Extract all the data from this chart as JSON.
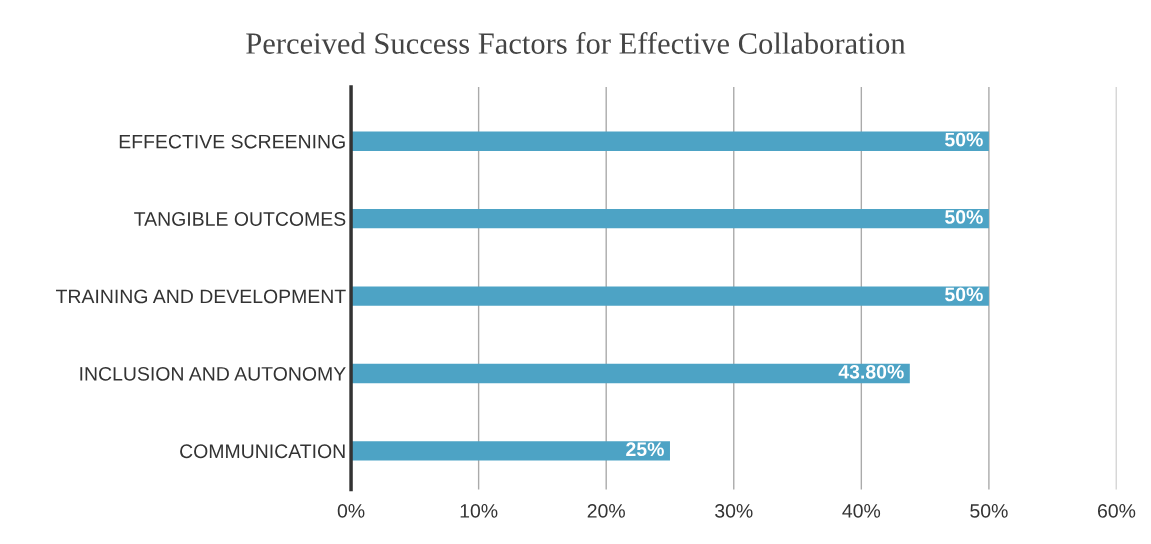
{
  "chart_data": {
    "type": "bar",
    "orientation": "horizontal",
    "title": "Perceived Success Factors for Effective Collaboration",
    "categories": [
      "EFFECTIVE SCREENING",
      "TANGIBLE OUTCOMES",
      "TRAINING AND DEVELOPMENT",
      "INCLUSION AND AUTONOMY",
      "COMMUNICATION"
    ],
    "values": [
      50,
      50,
      50,
      43.8,
      25
    ],
    "value_labels": [
      "50%",
      "50%",
      "50%",
      "43.80%",
      "25%"
    ],
    "color": "#4da3c5",
    "xlim": [
      0,
      60
    ],
    "xticks": [
      {
        "value": 0,
        "label": "0%"
      },
      {
        "value": 10,
        "label": "10%"
      },
      {
        "value": 20,
        "label": "20%"
      },
      {
        "value": 30,
        "label": "30%"
      },
      {
        "value": 40,
        "label": "40%"
      },
      {
        "value": 50,
        "label": "50%"
      },
      {
        "value": 60,
        "label": "60%"
      }
    ],
    "grid": "x"
  }
}
